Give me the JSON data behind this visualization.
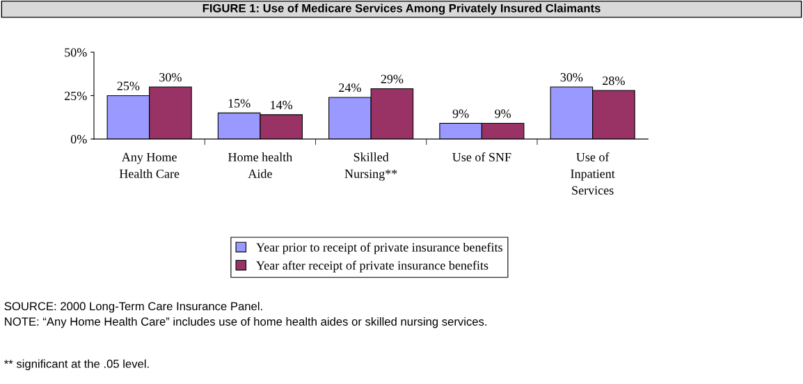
{
  "chart_data": {
    "type": "bar",
    "title": "FIGURE 1: Use of Medicare Services Among Privately Insured Claimants",
    "categories": [
      "Any Home\nHealth Care",
      "Home health\nAide",
      "Skilled\nNursing**",
      "Use of SNF",
      "Use of\nInpatient\nServices"
    ],
    "series": [
      {
        "name": "Year prior to receipt of private insurance benefits",
        "color": "#9999ff",
        "values": [
          25,
          15,
          24,
          9,
          30
        ],
        "value_labels": [
          "25%",
          "15%",
          "24%",
          "9%",
          "30%"
        ]
      },
      {
        "name": "Year after receipt of private insurance benefits",
        "color": "#993366",
        "values": [
          30,
          14,
          29,
          9,
          28
        ],
        "value_labels": [
          "30%",
          "14%",
          "29%",
          "9%",
          "28%"
        ]
      }
    ],
    "ylim": [
      0,
      50
    ],
    "yticks": [
      {
        "value": 0,
        "label": "0%"
      },
      {
        "value": 25,
        "label": "25%"
      },
      {
        "value": 50,
        "label": "50%"
      }
    ],
    "grid": false,
    "legend": "bottom",
    "annotations": [
      "SOURCE: 2000 Long-Term Care Insurance Panel.",
      "NOTE: “Any Home Health Care” includes use of home health aides or skilled nursing services.",
      "** significant at the .05 level."
    ]
  }
}
